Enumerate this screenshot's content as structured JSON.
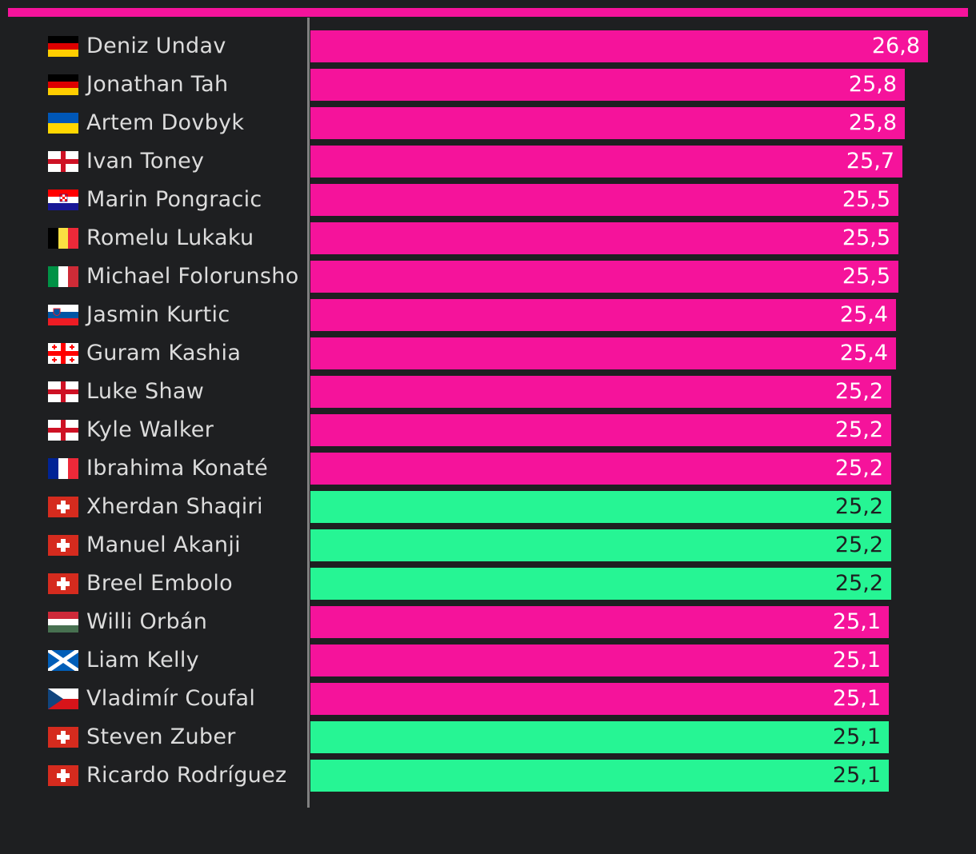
{
  "colors": {
    "background": "#1e1f21",
    "highlight": "#f5139b",
    "switzerland": "#26f594",
    "label": "#dcdcdc",
    "axis": "#808080"
  },
  "chart_data": {
    "type": "bar",
    "orientation": "horizontal",
    "title": "",
    "xlabel": "",
    "ylabel": "",
    "xlim": [
      0,
      26.8
    ],
    "grid": false,
    "legend": "none",
    "categories": [
      "Deniz Undav",
      "Jonathan Tah",
      "Artem Dovbyk",
      "Ivan Toney",
      "Marin Pongracic",
      "Romelu Lukaku",
      "Michael Folorunsho",
      "Jasmin Kurtic",
      "Guram Kashia",
      "Luke Shaw",
      "Kyle Walker",
      "Ibrahima Konaté",
      "Xherdan Shaqiri",
      "Manuel Akanji",
      "Breel Embolo",
      "Willi Orbán",
      "Liam Kelly",
      "Vladimír Coufal",
      "Steven Zuber",
      "Ricardo Rodríguez"
    ],
    "values": [
      26.8,
      25.8,
      25.8,
      25.7,
      25.5,
      25.5,
      25.5,
      25.4,
      25.4,
      25.2,
      25.2,
      25.2,
      25.2,
      25.2,
      25.2,
      25.1,
      25.1,
      25.1,
      25.1,
      25.1
    ],
    "value_labels": [
      "26,8",
      "25,8",
      "25,8",
      "25,7",
      "25,5",
      "25,5",
      "25,5",
      "25,4",
      "25,4",
      "25,2",
      "25,2",
      "25,2",
      "25,2",
      "25,2",
      "25,2",
      "25,1",
      "25,1",
      "25,1",
      "25,1",
      "25,1"
    ],
    "flags": [
      "germany-flag-icon",
      "germany-flag-icon",
      "ukraine-flag-icon",
      "england-flag-icon",
      "croatia-flag-icon",
      "belgium-flag-icon",
      "italy-flag-icon",
      "slovenia-flag-icon",
      "georgia-flag-icon",
      "england-flag-icon",
      "england-flag-icon",
      "france-flag-icon",
      "switzerland-flag-icon",
      "switzerland-flag-icon",
      "switzerland-flag-icon",
      "hungary-flag-icon",
      "scotland-flag-icon",
      "czechia-flag-icon",
      "switzerland-flag-icon",
      "switzerland-flag-icon"
    ],
    "bar_colors": [
      "#f5139b",
      "#f5139b",
      "#f5139b",
      "#f5139b",
      "#f5139b",
      "#f5139b",
      "#f5139b",
      "#f5139b",
      "#f5139b",
      "#f5139b",
      "#f5139b",
      "#f5139b",
      "#26f594",
      "#26f594",
      "#26f594",
      "#f5139b",
      "#f5139b",
      "#f5139b",
      "#26f594",
      "#26f594"
    ]
  }
}
